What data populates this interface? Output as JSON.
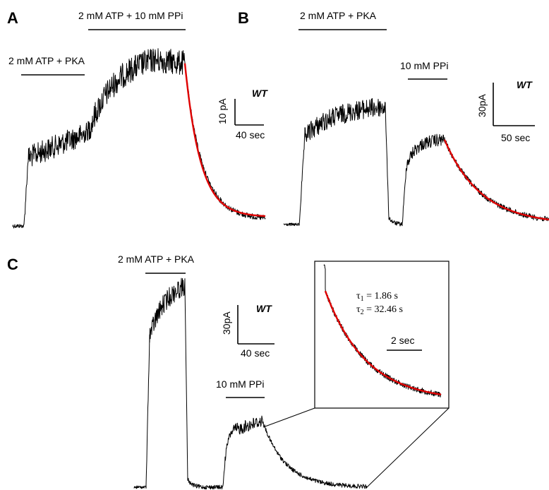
{
  "colors": {
    "trace": "#000000",
    "fit": "#e00000",
    "background": "#ffffff"
  },
  "chart_data": [
    {
      "panel": "A",
      "type": "line",
      "annotations": [
        {
          "id": "a-label-2",
          "text": "2 mM ATP + 10 mM PPi"
        },
        {
          "id": "a-label-1",
          "text": "2 mM ATP + PKA"
        }
      ],
      "scale_bar": {
        "y_label": "10 pA",
        "x_label": "40 sec",
        "tag": "WT"
      },
      "trace_levels": [
        0.0,
        0.55,
        1.0,
        0.04
      ],
      "fit": {
        "model": "exponential decay"
      }
    },
    {
      "panel": "B",
      "type": "line",
      "annotations": [
        {
          "id": "b-label-1",
          "text": "2 mM ATP + PKA"
        },
        {
          "id": "b-label-2",
          "text": "10 mM PPi"
        }
      ],
      "scale_bar": {
        "y_label": "30pA",
        "x_label": "50 sec",
        "tag": "WT"
      },
      "trace_levels": [
        0.0,
        1.0,
        0.0,
        0.72,
        0.0
      ],
      "fit": {
        "model": "exponential decay"
      }
    },
    {
      "panel": "C",
      "type": "line",
      "annotations": [
        {
          "id": "c-label-1",
          "text": "2 mM ATP + PKA"
        },
        {
          "id": "c-label-2",
          "text": "10 mM PPi"
        }
      ],
      "scale_bar": {
        "y_label": "30pA",
        "x_label": "40 sec",
        "tag": "WT"
      },
      "trace_levels": [
        0.0,
        1.0,
        0.0,
        0.33,
        0.0
      ],
      "inset": {
        "tau1_symbol": "τ",
        "tau1_sub": "1",
        "tau1_value": " = 1.86 s",
        "tau2_symbol": "τ",
        "tau2_sub": "2",
        "tau2_value": " = 32.46 s",
        "scale_x_label": "2 sec",
        "tau1_s": 1.86,
        "tau2_s": 32.46
      }
    }
  ]
}
